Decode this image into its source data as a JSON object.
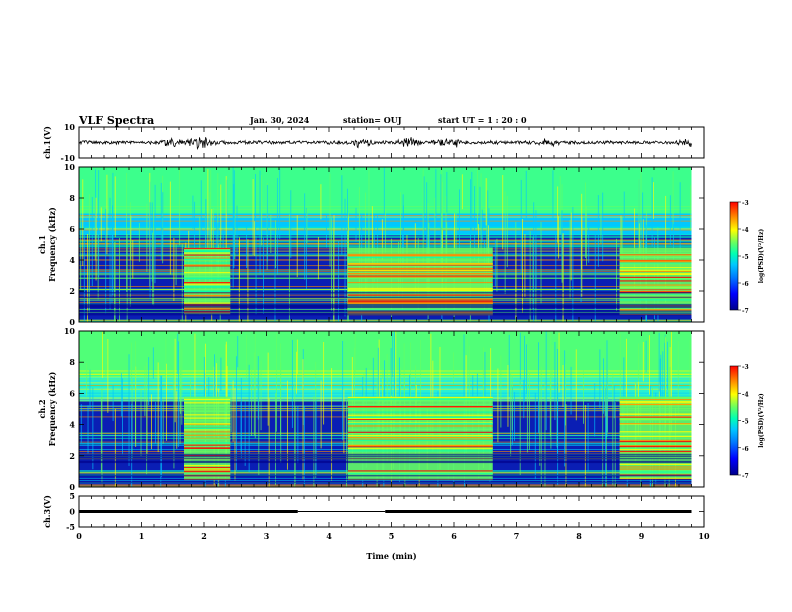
{
  "header": {
    "title": "VLF Spectra",
    "date": "Jan. 30, 2024",
    "station": "station= OUJ",
    "start_ut": "start  UT =  1 : 20 : 0"
  },
  "chart_data": [
    {
      "type": "line",
      "panel": "waveform-ch1",
      "ylabel": "ch.1(V)",
      "ylim": [
        -10,
        10
      ],
      "y_ticks": [
        "10",
        "-10"
      ],
      "xlim": [
        0,
        10
      ],
      "series": [
        {
          "values_description": "",
          "burst_times_min": [
            1.5,
            1.9,
            2.05,
            4.5,
            5.3,
            5.8,
            6.0,
            7.5,
            9.8
          ]
        }
      ],
      "color": "#000000"
    },
    {
      "type": "heatmap",
      "panel": "spectrogram-ch1",
      "ylabel": "ch.1\nFrequency (kHz)",
      "ylabel_parts": [
        "ch.1",
        "Frequency  (kHz)"
      ],
      "ylim": [
        0,
        10
      ],
      "y_ticks": [
        "0",
        "2",
        "4",
        "6",
        "8",
        "10"
      ],
      "xlim": [
        0,
        10
      ],
      "elevated_intervals_min": [
        [
          1.68,
          2.42
        ],
        [
          4.3,
          6.62
        ],
        [
          8.65,
          9.8
        ]
      ],
      "elevated_band_khz": [
        0.5,
        4.8
      ],
      "colorbar": {
        "label": "log(PSD)(V²/Hz)",
        "ticks": [
          "-3",
          "-4",
          "-5",
          "-6",
          "-7"
        ],
        "range": [
          -7,
          -3
        ]
      }
    },
    {
      "type": "heatmap",
      "panel": "spectrogram-ch2",
      "ylabel": "ch.2\nFrequency (kHz)",
      "ylabel_parts": [
        "ch.2",
        "Frequency  (kHz)"
      ],
      "ylim": [
        0,
        10
      ],
      "y_ticks": [
        "0",
        "2",
        "4",
        "6",
        "8",
        "10"
      ],
      "xlim": [
        0,
        10
      ],
      "elevated_intervals_min": [
        [
          1.68,
          2.42
        ],
        [
          4.3,
          6.62
        ],
        [
          8.65,
          9.8
        ]
      ],
      "elevated_band_khz": [
        0.5,
        5.8
      ],
      "colorbar": {
        "label": "log(PSD)(V²/Hz)",
        "ticks": [
          "-3",
          "-4",
          "-5",
          "-6",
          "-7"
        ],
        "range": [
          -7,
          -3
        ]
      }
    },
    {
      "type": "line",
      "panel": "waveform-ch3",
      "ylabel": "ch.3(V)",
      "ylim": [
        -5,
        5
      ],
      "y_ticks": [
        "5",
        "0",
        "-5"
      ],
      "xlim": [
        0,
        10
      ],
      "series": [
        {
          "x": [
            0,
            3.5,
            3.5,
            4.9,
            4.9,
            9.8
          ],
          "y": [
            0,
            0,
            null,
            null,
            0,
            0
          ]
        }
      ],
      "thin_segment_min": [
        3.5,
        4.9
      ],
      "color": "#000000"
    }
  ],
  "x_axis": {
    "label": "Time  (min)",
    "ticks": [
      "0",
      "1",
      "2",
      "3",
      "4",
      "5",
      "6",
      "7",
      "8",
      "9",
      "10"
    ]
  },
  "colors": {
    "background": "#ffffff",
    "axis": "#000000",
    "colormap": [
      "#00008b",
      "#0000ff",
      "#0078ff",
      "#00c8ff",
      "#00ffb4",
      "#64ff64",
      "#ffff00",
      "#ff8c00",
      "#ff0000"
    ]
  }
}
